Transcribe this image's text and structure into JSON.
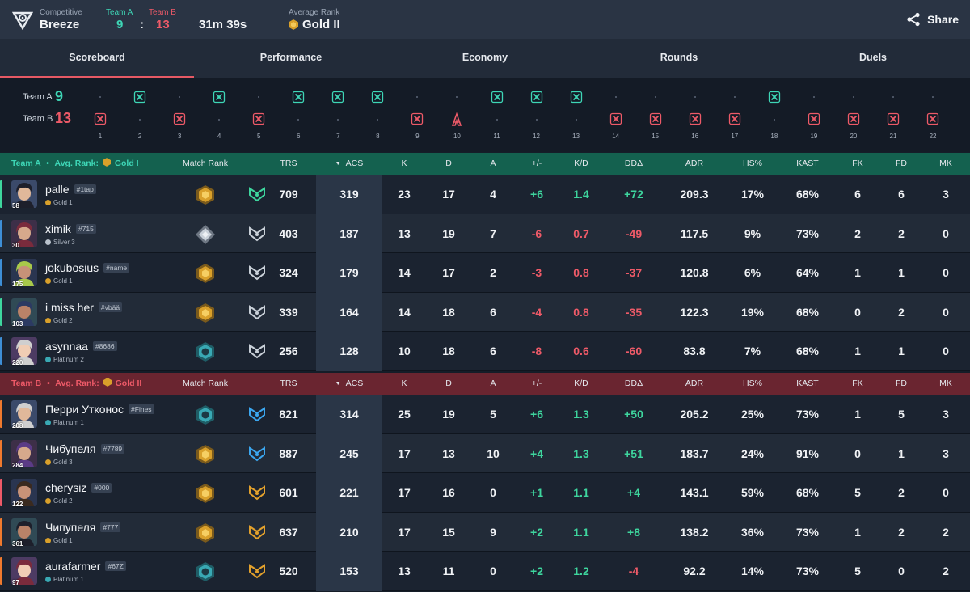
{
  "header": {
    "mode_label": "Competitive",
    "map_name": "Breeze",
    "team_a_label": "Team A",
    "team_b_label": "Team B",
    "team_a_score": "9",
    "separator": ":",
    "team_b_score": "13",
    "duration": "31m 39s",
    "avg_rank_label": "Average Rank",
    "avg_rank_value": "Gold II",
    "share_label": "Share"
  },
  "tabs": [
    "Scoreboard",
    "Performance",
    "Economy",
    "Rounds",
    "Duels"
  ],
  "active_tab": "Scoreboard",
  "timeline": {
    "team_a_label": "Team A",
    "team_a_score": "9",
    "team_b_label": "Team B",
    "team_b_score": "13",
    "round_numbers": [
      "1",
      "2",
      "3",
      "4",
      "5",
      "6",
      "7",
      "8",
      "9",
      "10",
      "11",
      "12",
      "13",
      "14",
      "15",
      "16",
      "17",
      "18",
      "19",
      "20",
      "21",
      "22"
    ],
    "round_winners": [
      "B",
      "A",
      "B",
      "A",
      "B",
      "A",
      "A",
      "A",
      "B",
      "B",
      "A",
      "A",
      "A",
      "B",
      "B",
      "B",
      "B",
      "A",
      "B",
      "B",
      "B",
      "B"
    ],
    "special_round": "10"
  },
  "columns": [
    "Match Rank",
    "TRS",
    "ACS",
    "K",
    "D",
    "A",
    "+/-",
    "K/D",
    "DDΔ",
    "ADR",
    "HS%",
    "KAST",
    "FK",
    "FD",
    "MK"
  ],
  "team_a": {
    "name": "Team A",
    "avg_rank_label": "Avg. Rank:",
    "avg_rank": "Gold I",
    "players": [
      {
        "name": "palle",
        "tag": "#1tap",
        "rank": "Gold 1",
        "level": "58",
        "trs": "709",
        "acs": "319",
        "k": "23",
        "d": "17",
        "a": "4",
        "pm": "+6",
        "kd": "1.4",
        "dd": "+72",
        "adr": "209.3",
        "hs": "17%",
        "kast": "68%",
        "fk": "6",
        "fd": "6",
        "mk": "3"
      },
      {
        "name": "ximik",
        "tag": "#715",
        "rank": "Silver 3",
        "level": "30",
        "trs": "403",
        "acs": "187",
        "k": "13",
        "d": "19",
        "a": "7",
        "pm": "-6",
        "kd": "0.7",
        "dd": "-49",
        "adr": "117.5",
        "hs": "9%",
        "kast": "73%",
        "fk": "2",
        "fd": "2",
        "mk": "0"
      },
      {
        "name": "jokubosius",
        "tag": "#name",
        "rank": "Gold 1",
        "level": "175",
        "trs": "324",
        "acs": "179",
        "k": "14",
        "d": "17",
        "a": "2",
        "pm": "-3",
        "kd": "0.8",
        "dd": "-37",
        "adr": "120.8",
        "hs": "6%",
        "kast": "64%",
        "fk": "1",
        "fd": "1",
        "mk": "0"
      },
      {
        "name": "i miss her",
        "tag": "#vbää",
        "rank": "Gold 2",
        "level": "103",
        "trs": "339",
        "acs": "164",
        "k": "14",
        "d": "18",
        "a": "6",
        "pm": "-4",
        "kd": "0.8",
        "dd": "-35",
        "adr": "122.3",
        "hs": "19%",
        "kast": "68%",
        "fk": "0",
        "fd": "2",
        "mk": "0"
      },
      {
        "name": "asynnaa",
        "tag": "#8686",
        "rank": "Platinum 2",
        "level": "220",
        "trs": "256",
        "acs": "128",
        "k": "10",
        "d": "18",
        "a": "6",
        "pm": "-8",
        "kd": "0.6",
        "dd": "-60",
        "adr": "83.8",
        "hs": "7%",
        "kast": "68%",
        "fk": "1",
        "fd": "1",
        "mk": "0"
      }
    ]
  },
  "team_b": {
    "name": "Team B",
    "avg_rank_label": "Avg. Rank:",
    "avg_rank": "Gold II",
    "players": [
      {
        "name": "Перри Утконос",
        "tag": "#Fines",
        "rank": "Platinum 1",
        "level": "208",
        "trs": "821",
        "acs": "314",
        "k": "25",
        "d": "19",
        "a": "5",
        "pm": "+6",
        "kd": "1.3",
        "dd": "+50",
        "adr": "205.2",
        "hs": "25%",
        "kast": "73%",
        "fk": "1",
        "fd": "5",
        "mk": "3"
      },
      {
        "name": "Чибупеля",
        "tag": "#7789",
        "rank": "Gold 3",
        "level": "284",
        "trs": "887",
        "acs": "245",
        "k": "17",
        "d": "13",
        "a": "10",
        "pm": "+4",
        "kd": "1.3",
        "dd": "+51",
        "adr": "183.7",
        "hs": "24%",
        "kast": "91%",
        "fk": "0",
        "fd": "1",
        "mk": "3"
      },
      {
        "name": "cherysiz",
        "tag": "#000",
        "rank": "Gold 2",
        "level": "122",
        "trs": "601",
        "acs": "221",
        "k": "17",
        "d": "16",
        "a": "0",
        "pm": "+1",
        "kd": "1.1",
        "dd": "+4",
        "adr": "143.1",
        "hs": "59%",
        "kast": "68%",
        "fk": "5",
        "fd": "2",
        "mk": "0"
      },
      {
        "name": "Чипупеля",
        "tag": "#777",
        "rank": "Gold 1",
        "level": "361",
        "trs": "637",
        "acs": "210",
        "k": "17",
        "d": "15",
        "a": "9",
        "pm": "+2",
        "kd": "1.1",
        "dd": "+8",
        "adr": "138.2",
        "hs": "36%",
        "kast": "73%",
        "fk": "1",
        "fd": "2",
        "mk": "2"
      },
      {
        "name": "aurafarmer",
        "tag": "#67Z",
        "rank": "Platinum 1",
        "level": "97",
        "trs": "520",
        "acs": "153",
        "k": "13",
        "d": "11",
        "a": "0",
        "pm": "+2",
        "kd": "1.2",
        "dd": "-4",
        "adr": "92.2",
        "hs": "14%",
        "kast": "73%",
        "fk": "5",
        "fd": "0",
        "mk": "2"
      }
    ]
  },
  "colors": {
    "team_a": "#3ed6b6",
    "team_b": "#ee5a68",
    "positive": "#3ed69e",
    "negative": "#ee5a68",
    "gold": "#d9a02a",
    "silver": "#b9c2cc",
    "platinum": "#39a9b4"
  }
}
